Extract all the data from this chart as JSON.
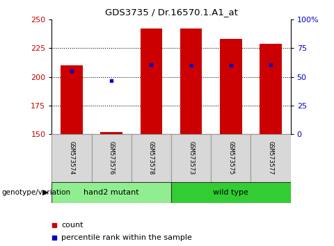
{
  "title": "GDS3735 / Dr.16570.1.A1_at",
  "samples": [
    "GSM573574",
    "GSM573576",
    "GSM573578",
    "GSM573573",
    "GSM573575",
    "GSM573577"
  ],
  "count_values": [
    210,
    152,
    242,
    242,
    233,
    229
  ],
  "percentile_values": [
    205,
    197,
    211,
    210,
    210,
    211
  ],
  "ymin": 150,
  "ymax": 250,
  "yticks_left": [
    150,
    175,
    200,
    225,
    250
  ],
  "yticks_right_vals": [
    0,
    25,
    50,
    75,
    100
  ],
  "groups": [
    {
      "label": "hand2 mutant",
      "start": 0,
      "end": 3,
      "color": "#90EE90"
    },
    {
      "label": "wild type",
      "start": 3,
      "end": 6,
      "color": "#32CD32"
    }
  ],
  "bar_color": "#CC0000",
  "dot_color": "#0000CC",
  "bar_width": 0.55,
  "genotype_label": "genotype/variation",
  "legend_count_label": "count",
  "legend_percentile_label": "percentile rank within the sample",
  "tick_label_color_left": "#CC0000",
  "tick_label_color_right": "#0000CC",
  "bg_gray": "#d8d8d8",
  "bg_green_light": "#90EE90",
  "bg_green_dark": "#32CD32"
}
